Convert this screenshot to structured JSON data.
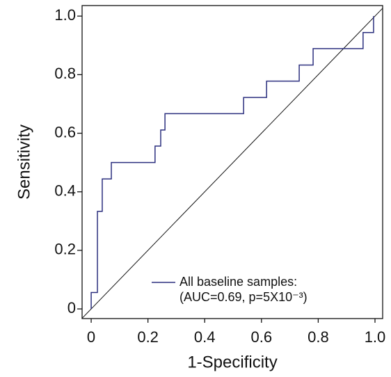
{
  "chart_data": {
    "type": "line",
    "xlabel": "1-Specificity",
    "ylabel": "Sensitivity",
    "xlim": [
      -0.032,
      1.027
    ],
    "ylim": [
      -0.033,
      1.036
    ],
    "xticks": [
      0,
      0.2,
      0.4,
      0.6,
      0.8,
      {
        "value": 1,
        "label": "1.0"
      }
    ],
    "yticks": [
      0,
      0.2,
      0.4,
      0.6,
      0.8,
      {
        "value": 1,
        "label": "1.0"
      }
    ],
    "legend": "lower right",
    "annotation": "(AUC=0.69, p=5X10⁻³)",
    "series": [
      {
        "name": "All baseline samples:",
        "color": "#2b2f7e",
        "x": [
          0,
          0,
          0.022,
          0.022,
          0.039,
          0.039,
          0.071,
          0.071,
          0.225,
          0.225,
          0.245,
          0.245,
          0.26,
          0.26,
          0.537,
          0.537,
          0.618,
          0.618,
          0.733,
          0.733,
          0.782,
          0.782,
          0.958,
          0.958,
          0.995,
          0.995
        ],
        "values": [
          0,
          0.056,
          0.056,
          0.333,
          0.333,
          0.444,
          0.444,
          0.5,
          0.5,
          0.556,
          0.556,
          0.611,
          0.611,
          0.667,
          0.667,
          0.722,
          0.722,
          0.778,
          0.778,
          0.833,
          0.833,
          0.889,
          0.889,
          0.944,
          0.944,
          1.0
        ]
      }
    ]
  }
}
